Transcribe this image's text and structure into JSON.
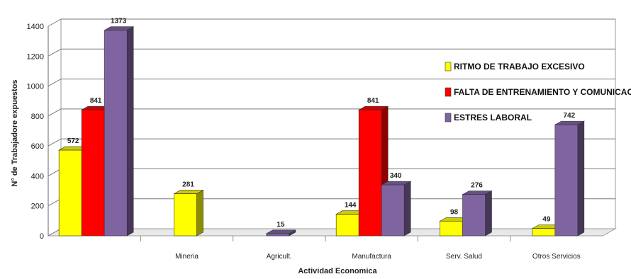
{
  "chart_data": {
    "type": "bar",
    "categories": [
      "",
      "Mineria",
      "Agricult.",
      "Manufactura",
      "Serv. Salud",
      "Otros Servicios"
    ],
    "series": [
      {
        "name": "RITMO DE TRABAJO EXCESIVO",
        "color": "#ffff00",
        "values": [
          572,
          281,
          null,
          144,
          98,
          49
        ]
      },
      {
        "name": "FALTA DE ENTRENAMIENTO Y COMUNICACIÓN",
        "color": "#ff0000",
        "values": [
          841,
          null,
          null,
          841,
          null,
          null
        ]
      },
      {
        "name": "ESTRES LABORAL",
        "color": "#8064a2",
        "values": [
          1373,
          null,
          15,
          340,
          276,
          742
        ]
      }
    ],
    "data_labels": [
      [
        "572",
        "281",
        "",
        "144",
        "98",
        "49"
      ],
      [
        "841",
        "",
        "",
        "841",
        "",
        ""
      ],
      [
        "1373",
        "",
        "15",
        "340",
        "276",
        "742"
      ]
    ],
    "xlabel": "Actividad Economica",
    "ylabel": "N° de Trabajadore expuestos",
    "ylim": [
      0,
      1400
    ],
    "yticks": [
      "0",
      "200",
      "400",
      "600",
      "800",
      "1000",
      "1200",
      "1400"
    ],
    "grid": true,
    "legend_position": "right",
    "style": "3d-bar"
  }
}
